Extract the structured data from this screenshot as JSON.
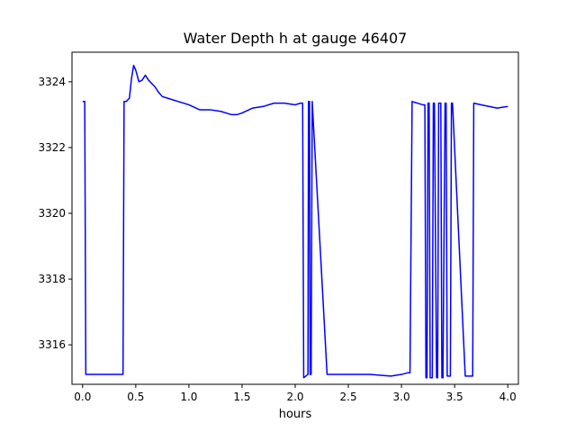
{
  "chart_data": {
    "type": "line",
    "title": "Water Depth h at gauge 46407",
    "xlabel": "hours",
    "ylabel": "",
    "xlim": [
      -0.1,
      4.1
    ],
    "ylim": [
      3314.8,
      3324.9
    ],
    "xticks": [
      0.0,
      0.5,
      1.0,
      1.5,
      2.0,
      2.5,
      3.0,
      3.5,
      4.0
    ],
    "xtick_labels": [
      "0.0",
      "0.5",
      "1.0",
      "1.5",
      "2.0",
      "2.5",
      "3.0",
      "3.5",
      "4.0"
    ],
    "yticks": [
      3316,
      3318,
      3320,
      3322,
      3324
    ],
    "ytick_labels": [
      "3316",
      "3318",
      "3320",
      "3322",
      "3324"
    ],
    "grid": false,
    "legend": "none",
    "series": [
      {
        "color": "#0000ff",
        "x": [
          0.0,
          0.02,
          0.03,
          0.1,
          0.2,
          0.3,
          0.38,
          0.39,
          0.41,
          0.44,
          0.46,
          0.48,
          0.5,
          0.53,
          0.56,
          0.59,
          0.62,
          0.65,
          0.68,
          0.71,
          0.75,
          0.8,
          0.9,
          1.0,
          1.1,
          1.2,
          1.3,
          1.4,
          1.45,
          1.5,
          1.6,
          1.7,
          1.8,
          1.9,
          2.0,
          2.05,
          2.07,
          2.08,
          2.12,
          2.125,
          2.135,
          2.14,
          2.15,
          2.16,
          2.3,
          2.5,
          2.7,
          2.9,
          3.0,
          3.06,
          3.08,
          3.1,
          3.2,
          3.22,
          3.23,
          3.24,
          3.25,
          3.26,
          3.27,
          3.29,
          3.3,
          3.31,
          3.33,
          3.34,
          3.35,
          3.37,
          3.38,
          3.39,
          3.41,
          3.42,
          3.43,
          3.46,
          3.47,
          3.48,
          3.6,
          3.67,
          3.68,
          3.75,
          3.9,
          4.0
        ],
        "y": [
          3323.4,
          3323.4,
          3315.1,
          3315.1,
          3315.1,
          3315.1,
          3315.1,
          3323.4,
          3323.4,
          3323.5,
          3324.1,
          3324.5,
          3324.35,
          3324.0,
          3324.05,
          3324.2,
          3324.05,
          3323.95,
          3323.85,
          3323.7,
          3323.55,
          3323.5,
          3323.4,
          3323.3,
          3323.15,
          3323.15,
          3323.1,
          3323.0,
          3323.0,
          3323.05,
          3323.2,
          3323.25,
          3323.35,
          3323.35,
          3323.3,
          3323.35,
          3323.35,
          3315.0,
          3315.1,
          3323.4,
          3323.4,
          3315.1,
          3315.1,
          3323.4,
          3315.1,
          3315.1,
          3315.1,
          3315.05,
          3315.1,
          3315.15,
          3315.15,
          3323.4,
          3323.3,
          3323.3,
          3315.0,
          3315.0,
          3323.35,
          3323.35,
          3315.0,
          3315.0,
          3323.35,
          3323.35,
          3315.0,
          3315.0,
          3323.35,
          3323.35,
          3315.0,
          3315.0,
          3323.35,
          3323.35,
          3315.05,
          3315.05,
          3323.35,
          3323.35,
          3315.05,
          3315.05,
          3323.35,
          3323.3,
          3323.2,
          3323.25
        ]
      }
    ]
  }
}
